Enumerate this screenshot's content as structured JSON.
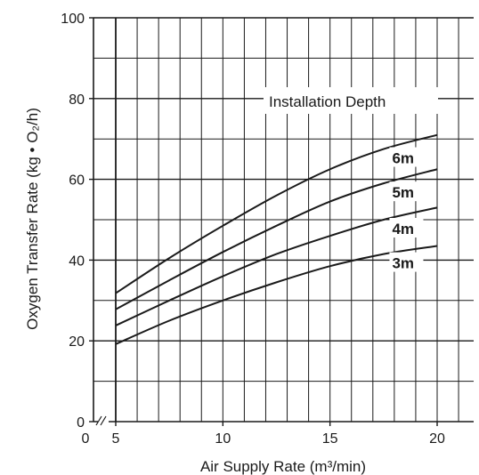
{
  "chart_data": {
    "type": "line",
    "title": "",
    "xlabel": "Air Supply Rate  (m³/min)",
    "ylabel": "Oxygen Transfer Rate (kg • O₂/h)",
    "legend_title": "Installation Depth",
    "xlim": [
      0,
      22
    ],
    "ylim": [
      0,
      100
    ],
    "x_ticks": [
      5,
      10,
      15,
      20
    ],
    "x_tick_labels": [
      "5",
      "10",
      "15",
      "20"
    ],
    "x_origin_label": "0",
    "axis_break_mark": "//",
    "y_ticks": [
      0,
      20,
      40,
      60,
      80,
      100
    ],
    "y_tick_labels": [
      "0",
      "20",
      "40",
      "60",
      "80",
      "100"
    ],
    "grid": true,
    "x": [
      5,
      7.5,
      10,
      12.5,
      15,
      17.5,
      20
    ],
    "series": [
      {
        "name": "3m",
        "values": [
          19.2,
          25.0,
          30.0,
          34.5,
          38.5,
          41.5,
          43.5
        ]
      },
      {
        "name": "4m",
        "values": [
          23.8,
          30.0,
          36.0,
          41.5,
          46.0,
          50.0,
          53.0
        ]
      },
      {
        "name": "5m",
        "values": [
          27.8,
          35.0,
          42.0,
          48.5,
          54.5,
          59.0,
          62.5
        ]
      },
      {
        "name": "6m",
        "values": [
          31.8,
          40.5,
          48.5,
          56.0,
          62.5,
          67.5,
          71.0
        ]
      }
    ],
    "line_color": "#1a1a1a"
  }
}
